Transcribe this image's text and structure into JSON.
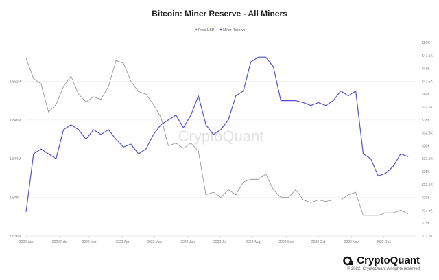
{
  "chart_data": {
    "type": "line",
    "title": "Bitcoin: Miner Reserve - All Miners",
    "legend_placement": "top-center",
    "grid": true,
    "watermark": "CryptoQuant",
    "x_ticks": [
      "2022 Jan",
      "2022 Feb",
      "2022 Mar",
      "2022 Apr",
      "2022 May",
      "2022 Jun",
      "2022 Jul",
      "2022 Aug",
      "2022 Sep",
      "2022 Oct",
      "2022 Nov",
      "2022 Dec"
    ],
    "x": [
      "2022-01-01",
      "2022-01-08",
      "2022-01-15",
      "2022-01-22",
      "2022-01-29",
      "2022-02-05",
      "2022-02-12",
      "2022-02-19",
      "2022-02-26",
      "2022-03-05",
      "2022-03-12",
      "2022-03-19",
      "2022-03-26",
      "2022-04-02",
      "2022-04-09",
      "2022-04-16",
      "2022-04-23",
      "2022-04-30",
      "2022-05-07",
      "2022-05-14",
      "2022-05-21",
      "2022-05-28",
      "2022-06-04",
      "2022-06-11",
      "2022-06-18",
      "2022-06-25",
      "2022-07-02",
      "2022-07-09",
      "2022-07-16",
      "2022-07-23",
      "2022-07-30",
      "2022-08-06",
      "2022-08-13",
      "2022-08-20",
      "2022-08-27",
      "2022-09-03",
      "2022-09-10",
      "2022-09-17",
      "2022-09-24",
      "2022-10-01",
      "2022-10-08",
      "2022-10-15",
      "2022-10-22",
      "2022-10-29",
      "2022-11-05",
      "2022-11-12",
      "2022-11-19",
      "2022-11-26",
      "2022-12-03",
      "2022-12-10",
      "2022-12-17",
      "2022-12-24"
    ],
    "y_left_ticks": [
      "1.836M",
      "1.84M",
      "1.844M",
      "1.848M",
      "1.852M"
    ],
    "y_left_range": [
      1.836,
      1.856
    ],
    "y_right_ticks": [
      "$12.5K",
      "$15K",
      "$17.5K",
      "$20K",
      "$22.5K",
      "$25K",
      "$27.5K",
      "$30K",
      "$32.5K",
      "$35K",
      "$37.5K",
      "$40K",
      "$42.5K",
      "$45K",
      "$47.5K",
      "$50K"
    ],
    "y_right_range": [
      12500,
      50000
    ],
    "series": [
      {
        "name": "Price USD",
        "axis": "right",
        "color": "#8c8c8c",
        "values": [
          47000,
          43000,
          42000,
          36500,
          38000,
          41500,
          43500,
          40000,
          38500,
          39500,
          39000,
          41500,
          46500,
          46000,
          42500,
          40500,
          40000,
          38000,
          35500,
          30000,
          30500,
          29500,
          30500,
          29000,
          20500,
          21000,
          20000,
          21500,
          20500,
          23000,
          23500,
          23500,
          24500,
          21500,
          20000,
          20000,
          21500,
          19500,
          19000,
          19500,
          19200,
          19500,
          19500,
          20500,
          21000,
          16500,
          16500,
          16500,
          17000,
          17000,
          17500,
          16800
        ]
      },
      {
        "name": "Miner Reserve",
        "axis": "left",
        "color": "#5252c8",
        "values": [
          1.8385,
          1.8445,
          1.845,
          1.8445,
          1.844,
          1.847,
          1.8475,
          1.847,
          1.846,
          1.847,
          1.8465,
          1.847,
          1.846,
          1.8452,
          1.8455,
          1.8445,
          1.845,
          1.8465,
          1.8475,
          1.848,
          1.8485,
          1.8472,
          1.8485,
          1.8505,
          1.8475,
          1.8465,
          1.847,
          1.848,
          1.8505,
          1.851,
          1.854,
          1.8545,
          1.8545,
          1.8535,
          1.85,
          1.85,
          1.85,
          1.8498,
          1.8495,
          1.8498,
          1.8495,
          1.85,
          1.851,
          1.8505,
          1.851,
          1.8445,
          1.844,
          1.8422,
          1.8425,
          1.8432,
          1.8445,
          1.8442
        ]
      }
    ]
  },
  "footer": {
    "brand": "CryptoQuant",
    "copyright": "© 2022. CryptoQuant All rights reserved"
  }
}
